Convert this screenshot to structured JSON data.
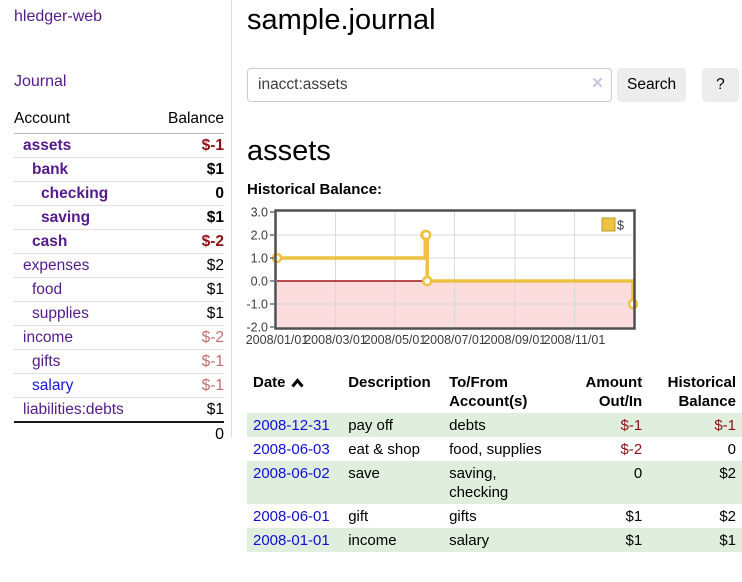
{
  "sidebar": {
    "brand": "hledger-web",
    "journal_label": "Journal",
    "accounts_table": {
      "account_header": "Account",
      "balance_header": "Balance",
      "rows": [
        {
          "name": "assets",
          "depth": 1,
          "bold": true,
          "balance": "$-1",
          "balance_class": "neg"
        },
        {
          "name": "bank",
          "depth": 2,
          "bold": true,
          "balance": "$1",
          "balance_class": ""
        },
        {
          "name": "checking",
          "depth": 3,
          "bold": true,
          "balance": "0",
          "balance_class": ""
        },
        {
          "name": "saving",
          "depth": 3,
          "bold": true,
          "balance": "$1",
          "balance_class": ""
        },
        {
          "name": "cash",
          "depth": 2,
          "bold": true,
          "balance": "$-2",
          "balance_class": "neg"
        },
        {
          "name": "expenses",
          "depth": 1,
          "bold": false,
          "balance": "$2",
          "balance_class": ""
        },
        {
          "name": "food",
          "depth": 2,
          "bold": false,
          "balance": "$1",
          "balance_class": ""
        },
        {
          "name": "supplies",
          "depth": 2,
          "bold": false,
          "balance": "$1",
          "balance_class": ""
        },
        {
          "name": "income",
          "depth": 1,
          "bold": false,
          "balance": "$-2",
          "balance_class": "negdim"
        },
        {
          "name": "gifts",
          "depth": 2,
          "bold": false,
          "balance": "$-1",
          "balance_class": "negdim"
        },
        {
          "name": "salary",
          "depth": 2,
          "bold": false,
          "link_style": "unvisited",
          "balance": "$-1",
          "balance_class": "negdim"
        },
        {
          "name": "liabilities:debts",
          "depth": 1,
          "bold": false,
          "balance": "$1",
          "balance_class": ""
        }
      ],
      "total": "0"
    }
  },
  "main": {
    "title": "sample.journal",
    "search": {
      "value": "inacct:assets",
      "clear_icon": "×",
      "search_button_label": "Search",
      "help_button_label": "?"
    },
    "account_heading": "assets",
    "section_label": "Historical Balance:"
  },
  "chart_data": {
    "type": "line",
    "step": true,
    "title": "Historical Balance:",
    "series": [
      {
        "name": "$",
        "color": "#edc240",
        "points": [
          [
            "2008-01-01",
            1
          ],
          [
            "2008-06-01",
            2
          ],
          [
            "2008-06-02",
            2
          ],
          [
            "2008-06-03",
            0
          ],
          [
            "2008-12-31",
            -1
          ]
        ]
      }
    ],
    "x_range": [
      "2008-01-01",
      "2008-12-31"
    ],
    "ylim": [
      -2,
      3
    ],
    "y_ticks": [
      "3.0",
      "2.0",
      "1.0",
      "0.0",
      "-1.0",
      "-2.0"
    ],
    "x_ticks": [
      {
        "date": "2008-01-01",
        "label": "2008/01/01"
      },
      {
        "date": "2008-03-01",
        "label": "2008/03/01"
      },
      {
        "date": "2008-05-01",
        "label": "2008/05/01"
      },
      {
        "date": "2008-07-01",
        "label": "2008/07/01"
      },
      {
        "date": "2008-09-01",
        "label": "2008/09/01"
      },
      {
        "date": "2008-11-01",
        "label": "2008/11/01"
      }
    ],
    "legend": {
      "label": "$",
      "position": "top-right"
    },
    "colors": {
      "line": "#edc240",
      "marker_fill": "#ffffff",
      "negative_region": "#fcdcdc",
      "zero_line": "#a01616",
      "grid": "#d9d9d9",
      "border": "#4f4f4f",
      "axis_tick": "#62708a",
      "legend_border": "#bb9c2f"
    }
  },
  "register": {
    "headers": {
      "date": "Date",
      "description": "Description",
      "accounts": "To/From Account(s)",
      "amount": "Amount Out/In",
      "balance": "Historical Balance"
    },
    "rows": [
      {
        "date": "2008-12-31",
        "description": "pay off",
        "accounts_lines": [
          "debts"
        ],
        "amount": "$-1",
        "amount_class": "neg",
        "balance": "$-1",
        "balance_class": "neg"
      },
      {
        "date": "2008-06-03",
        "description": "eat & shop",
        "accounts_lines": [
          "food, supplies"
        ],
        "amount": "$-2",
        "amount_class": "neg",
        "balance": "0",
        "balance_class": ""
      },
      {
        "date": "2008-06-02",
        "description": "save",
        "accounts_lines": [
          "saving,",
          "checking"
        ],
        "amount": "0",
        "amount_class": "",
        "balance": "$2",
        "balance_class": ""
      },
      {
        "date": "2008-06-01",
        "description": "gift",
        "accounts_lines": [
          "gifts"
        ],
        "amount": "$1",
        "amount_class": "",
        "balance": "$2",
        "balance_class": ""
      },
      {
        "date": "2008-01-01",
        "description": "income",
        "accounts_lines": [
          "salary"
        ],
        "amount": "$1",
        "amount_class": "",
        "balance": "$1",
        "balance_class": ""
      }
    ]
  }
}
